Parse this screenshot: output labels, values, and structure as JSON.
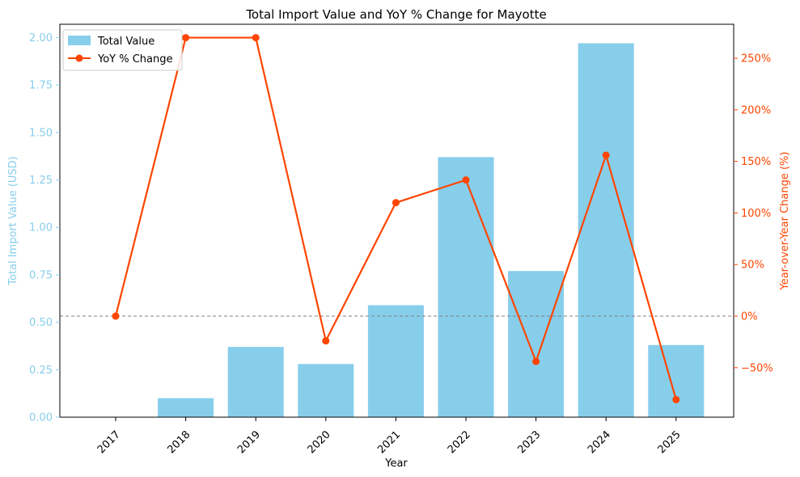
{
  "chart_data": {
    "type": "bar",
    "title": "Total Import Value and YoY % Change for Mayotte",
    "xlabel": "Year",
    "ylabel_left": "Total Import Value (USD)",
    "ylabel_right": "Year-over-Year Change (%)",
    "categories": [
      "2017",
      "2018",
      "2019",
      "2020",
      "2021",
      "2022",
      "2023",
      "2024",
      "2025"
    ],
    "ylim_left": [
      0,
      2.07
    ],
    "ylim_right": [
      -98,
      283
    ],
    "left_ticks": [
      "0.00",
      "0.25",
      "0.50",
      "0.75",
      "1.00",
      "1.25",
      "1.50",
      "1.75",
      "2.00"
    ],
    "left_tick_values": [
      0,
      0.25,
      0.5,
      0.75,
      1.0,
      1.25,
      1.5,
      1.75,
      2.0
    ],
    "right_ticks": [
      "−50%",
      "0%",
      "50%",
      "100%",
      "150%",
      "200%",
      "250%"
    ],
    "right_tick_values": [
      -50,
      0,
      50,
      100,
      150,
      200,
      250
    ],
    "series": [
      {
        "name": "Total Value",
        "kind": "bar",
        "axis": "left",
        "color": "#87CEEB",
        "values": [
          0.0,
          0.1,
          0.37,
          0.28,
          0.59,
          1.37,
          0.77,
          1.97,
          0.38
        ]
      },
      {
        "name": "YoY % Change",
        "kind": "line",
        "axis": "right",
        "color": "#FF4500",
        "values": [
          0,
          270,
          null,
          -24,
          110,
          132,
          -44,
          156,
          -81
        ]
      }
    ],
    "reference_line": {
      "axis": "right",
      "value": 0,
      "color": "#808080",
      "style": "dashed"
    },
    "legend": "top-left",
    "grid": false,
    "left_axis_color": "#87CEEB",
    "right_axis_color": "#FF4500"
  }
}
